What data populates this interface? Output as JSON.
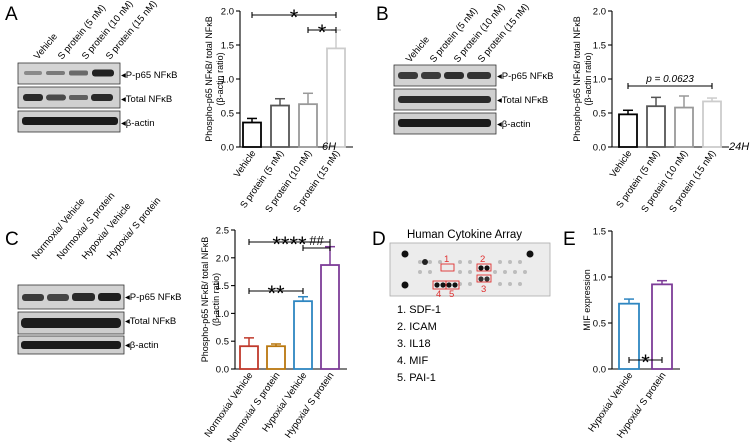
{
  "panels": [
    {
      "letter": "A",
      "lanes": [
        "Vehicle",
        "S protein (5 nM)",
        "S protein (10 nM)",
        "S protein (15 nM)"
      ],
      "blots": [
        "P-p65 NFκB",
        "Total NFκB",
        "β-actin"
      ],
      "time_label": "6H"
    },
    {
      "letter": "B",
      "lanes": [
        "Vehicle",
        "S protein (5 nM)",
        "S protein (10 nM)",
        "S protein (15 nM)"
      ],
      "blots": [
        "P-p65 NFκB",
        "Total NFκB",
        "β-actin"
      ],
      "time_label": "24H"
    },
    {
      "letter": "C",
      "lanes": [
        "Normoxia/ Vehicle",
        "Normoxia/ S protein",
        "Hypoxia/ Vehicle",
        "Hypoxia/ S protein"
      ],
      "blots": [
        "P-p65 NFκB",
        "Total NFκB",
        "β-actin"
      ]
    },
    {
      "letter": "D",
      "array_title": "Human Cytokine Array",
      "spot_numbers": [
        "1",
        "2",
        "3",
        "4",
        "5"
      ],
      "legend": [
        "1. SDF-1",
        "2. ICAM",
        "3. IL18",
        "4. MIF",
        "5. PAI-1"
      ]
    },
    {
      "letter": "E"
    }
  ],
  "chart_data": [
    {
      "id": "A",
      "type": "bar",
      "categories": [
        "Vehicle",
        "S protein (5 nM)",
        "S protein (10 nM)",
        "S protein (15 nM)"
      ],
      "values": [
        0.36,
        0.61,
        0.63,
        1.45
      ],
      "errors": [
        0.06,
        0.1,
        0.16,
        0.27
      ],
      "ylabel": "Phospho-p65 NFκB/ total NFκB (β-actin ratio)",
      "ylim": [
        0,
        2.0
      ],
      "yticks": [
        0.0,
        0.5,
        1.0,
        1.5,
        2.0
      ],
      "ytick_labels": [
        "0.0",
        "0.5",
        "1.0",
        "1.5",
        "2.0"
      ],
      "bar_colors": [
        "#000000",
        "#555555",
        "#999999",
        "#cccccc"
      ],
      "annotations": [
        {
          "from": 0,
          "to": 3,
          "label": "*"
        },
        {
          "from": 2,
          "to": 3,
          "label": "*"
        }
      ]
    },
    {
      "id": "B",
      "type": "bar",
      "categories": [
        "Vehicle",
        "S protein (5 nM)",
        "S protein (10 nM)",
        "S protein (15 nM)"
      ],
      "values": [
        0.48,
        0.6,
        0.58,
        0.67
      ],
      "errors": [
        0.06,
        0.13,
        0.17,
        0.05
      ],
      "ylabel": "Phospho-p65 NFκB/ total NFκB (β-actin ratio)",
      "ylim": [
        0,
        2.0
      ],
      "yticks": [
        0.0,
        0.5,
        1.0,
        1.5,
        2.0
      ],
      "ytick_labels": [
        "0.0",
        "0.5",
        "1.0",
        "1.5",
        "2.0"
      ],
      "bar_colors": [
        "#000000",
        "#555555",
        "#999999",
        "#cccccc"
      ],
      "annotations": [
        {
          "from": 0,
          "to": 3,
          "label": "p = 0.0623"
        }
      ]
    },
    {
      "id": "C",
      "type": "bar",
      "categories": [
        "Normoxia/ Vehicle",
        "Normoxia/ S protein",
        "Hypoxia/ Vehicle",
        "Hypoxia/ S protein"
      ],
      "values": [
        0.41,
        0.41,
        1.22,
        1.87
      ],
      "errors": [
        0.15,
        0.04,
        0.08,
        0.33
      ],
      "ylabel": "Phospho-p65 NFκB/ total NFκB (β-actin ratio)",
      "ylim": [
        0,
        2.5
      ],
      "yticks": [
        0.0,
        0.5,
        1.0,
        1.5,
        2.0,
        2.5
      ],
      "ytick_labels": [
        "0.0",
        "0.5",
        "1.0",
        "1.5",
        "2.0",
        "2.5"
      ],
      "bar_colors": [
        "#c0392b",
        "#b9770e",
        "#2e86c1",
        "#7d3c98"
      ],
      "annotations": [
        {
          "from": 0,
          "to": 2,
          "label": "**"
        },
        {
          "from": 0,
          "to": 3,
          "label": "****"
        },
        {
          "from": 2,
          "to": 3,
          "label": "##"
        }
      ]
    },
    {
      "id": "E",
      "type": "bar",
      "categories": [
        "Hypoxia/ Vehicle",
        "Hypoxia/ S protein"
      ],
      "values": [
        0.71,
        0.92
      ],
      "errors": [
        0.05,
        0.04
      ],
      "ylabel": "MIF expression",
      "ylim": [
        0,
        1.5
      ],
      "yticks": [
        0.0,
        0.5,
        1.0,
        1.5
      ],
      "ytick_labels": [
        "0.0",
        "0.5",
        "1.0",
        "1.5"
      ],
      "bar_colors": [
        "#2e86c1",
        "#7d3c98"
      ],
      "annotations": [
        {
          "from": 0,
          "to": 1,
          "label": "*"
        }
      ]
    }
  ]
}
